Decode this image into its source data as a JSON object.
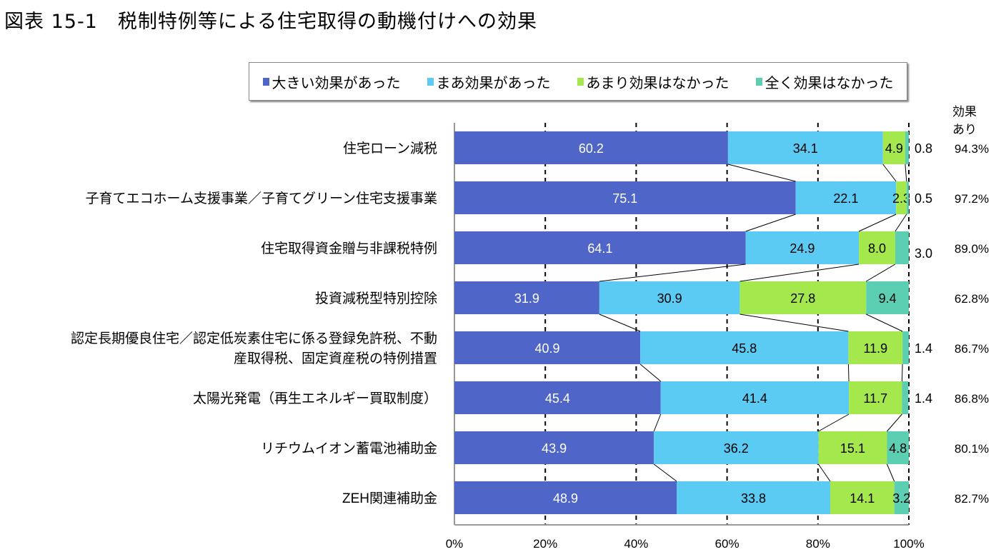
{
  "title": "図表 15-1　税制特例等による住宅取得の動機付けへの効果",
  "chart_data": {
    "type": "bar",
    "orientation": "horizontal",
    "stacked": true,
    "categories": [
      [
        "住宅ローン減税"
      ],
      [
        "子育てエコホーム支援事業／子育てグリーン住宅支援事業"
      ],
      [
        "住宅取得資金贈与非課税特例"
      ],
      [
        "投資減税型特別控除"
      ],
      [
        "認定長期優良住宅／認定低炭素住宅に係る登録免許税、不動",
        "産取得税、固定資産税の特例措置"
      ],
      [
        "太陽光発電（再生エネルギー買取制度）"
      ],
      [
        "リチウムイオン蓄電池補助金"
      ],
      [
        "ZEH関連補助金"
      ]
    ],
    "series": [
      {
        "name": "大きい効果があった",
        "color": "#4f66c8",
        "values": [
          60.2,
          75.1,
          64.1,
          31.9,
          40.9,
          45.4,
          43.9,
          48.9
        ]
      },
      {
        "name": "まあ効果があった",
        "color": "#5ccbf4",
        "values": [
          34.1,
          22.1,
          24.9,
          30.9,
          45.8,
          41.4,
          36.2,
          33.8
        ]
      },
      {
        "name": "あまり効果はなかった",
        "color": "#a5e84e",
        "values": [
          4.9,
          2.3,
          8.0,
          27.8,
          11.9,
          11.7,
          15.1,
          14.1
        ]
      },
      {
        "name": "全く効果はなかった",
        "color": "#5ccfb3",
        "values": [
          0.8,
          0.5,
          3.0,
          9.4,
          1.4,
          1.4,
          4.8,
          3.2
        ]
      }
    ],
    "effect_header": [
      "効果",
      "あり"
    ],
    "effect_values": [
      "94.3%",
      "97.2%",
      "89.0%",
      "62.8%",
      "86.7%",
      "86.8%",
      "80.1%",
      "82.7%"
    ],
    "xlim": [
      0,
      100
    ],
    "xticks": [
      "0%",
      "20%",
      "40%",
      "60%",
      "80%",
      "100%"
    ],
    "grid": "dashed vertical",
    "legend_position": "top"
  }
}
